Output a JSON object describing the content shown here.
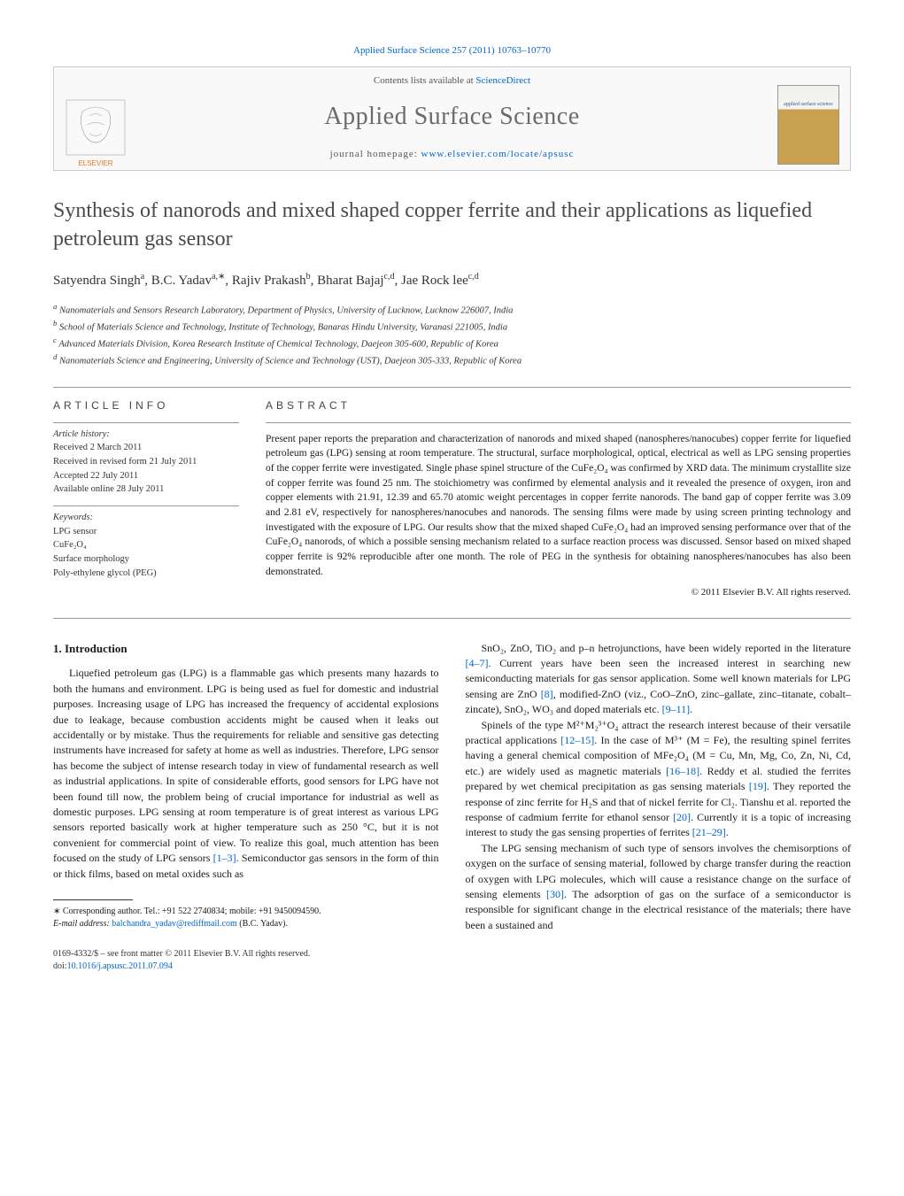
{
  "header": {
    "citation_prefix": "Applied Surface Science",
    "citation": "257 (2011) 10763–10770",
    "contents_line_pre": "Contents lists available at ",
    "contents_link": "ScienceDirect",
    "journal_name": "Applied Surface Science",
    "homepage_label": "journal homepage: ",
    "homepage_url": "www.elsevier.com/locate/apsusc",
    "cover_text": "applied surface science"
  },
  "title": "Synthesis of nanorods and mixed shaped copper ferrite and their applications as liquefied petroleum gas sensor",
  "authors_html": "Satyendra Singh<sup>a</sup>, B.C. Yadav<sup>a,∗</sup>, Rajiv Prakash<sup>b</sup>, Bharat Bajaj<sup>c,d</sup>, Jae Rock lee<sup>c,d</sup>",
  "affiliations": [
    "a Nanomaterials and Sensors Research Laboratory, Department of Physics, University of Lucknow, Lucknow 226007, India",
    "b School of Materials Science and Technology, Institute of Technology, Banaras Hindu University, Varanasi 221005, India",
    "c Advanced Materials Division, Korea Research Institute of Chemical Technology, Daejeon 305-600, Republic of Korea",
    "d Nanomaterials Science and Engineering, University of Science and Technology (UST), Daejeon 305-333, Republic of Korea"
  ],
  "article_info": {
    "heading": "ARTICLE INFO",
    "history_label": "Article history:",
    "history": [
      "Received 2 March 2011",
      "Received in revised form 21 July 2011",
      "Accepted 22 July 2011",
      "Available online 28 July 2011"
    ],
    "keywords_label": "Keywords:",
    "keywords": [
      "LPG sensor",
      "CuFe₂O₄",
      "Surface morphology",
      "Poly-ethylene glycol (PEG)"
    ]
  },
  "abstract": {
    "heading": "ABSTRACT",
    "text": "Present paper reports the preparation and characterization of nanorods and mixed shaped (nanospheres/nanocubes) copper ferrite for liquefied petroleum gas (LPG) sensing at room temperature. The structural, surface morphological, optical, electrical as well as LPG sensing properties of the copper ferrite were investigated. Single phase spinel structure of the CuFe₂O₄ was confirmed by XRD data. The minimum crystallite size of copper ferrite was found 25 nm. The stoichiometry was confirmed by elemental analysis and it revealed the presence of oxygen, iron and copper elements with 21.91, 12.39 and 65.70 atomic weight percentages in copper ferrite nanorods. The band gap of copper ferrite was 3.09 and 2.81 eV, respectively for nanospheres/nanocubes and nanorods. The sensing films were made by using screen printing technology and investigated with the exposure of LPG. Our results show that the mixed shaped CuFe₂O₄ had an improved sensing performance over that of the CuFe₂O₄ nanorods, of which a possible sensing mechanism related to a surface reaction process was discussed. Sensor based on mixed shaped copper ferrite is 92% reproducible after one month. The role of PEG in the synthesis for obtaining nanospheres/nanocubes has also been demonstrated.",
    "copyright": "© 2011 Elsevier B.V. All rights reserved."
  },
  "body": {
    "section_heading": "1. Introduction",
    "left_col": "Liquefied petroleum gas (LPG) is a flammable gas which presents many hazards to both the humans and environment. LPG is being used as fuel for domestic and industrial purposes. Increasing usage of LPG has increased the frequency of accidental explosions due to leakage, because combustion accidents might be caused when it leaks out accidentally or by mistake. Thus the requirements for reliable and sensitive gas detecting instruments have increased for safety at home as well as industries. Therefore, LPG sensor has become the subject of intense research today in view of fundamental research as well as industrial applications. In spite of considerable efforts, good sensors for LPG have not been found till now, the problem being of crucial importance for industrial as well as domestic purposes. LPG sensing at room temperature is of great interest as various LPG sensors reported basically work at higher temperature such as 250 °C, but it is not convenient for commercial point of view. To realize this goal, much attention has been focused on the study of LPG sensors [1–3]. Semiconductor gas sensors in the form of thin or thick films, based on metal oxides such as",
    "right_col_p1": "SnO₂, ZnO, TiO₂ and p–n hetrojunctions, have been widely reported in the literature [4–7]. Current years have been seen the increased interest in searching new semiconducting materials for gas sensor application. Some well known materials for LPG sensing are ZnO [8], modified-ZnO (viz., CoO–ZnO, zinc–gallate, zinc–titanate, cobalt–zincate), SnO₂, WO₃ and doped materials etc. [9–11].",
    "right_col_p2": "Spinels of the type M²⁺M₂³⁺O₄ attract the research interest because of their versatile practical applications [12–15]. In the case of M³⁺ (M = Fe), the resulting spinel ferrites having a general chemical composition of MFe₂O₄ (M = Cu, Mn, Mg, Co, Zn, Ni, Cd, etc.) are widely used as magnetic materials [16–18]. Reddy et al. studied the ferrites prepared by wet chemical precipitation as gas sensing materials [19]. They reported the response of zinc ferrite for H₂S and that of nickel ferrite for Cl₂. Tianshu et al. reported the response of cadmium ferrite for ethanol sensor [20]. Currently it is a topic of increasing interest to study the gas sensing properties of ferrites [21–29].",
    "right_col_p3": "The LPG sensing mechanism of such type of sensors involves the chemisorptions of oxygen on the surface of sensing material, followed by charge transfer during the reaction of oxygen with LPG molecules, which will cause a resistance change on the surface of sensing elements [30]. The adsorption of gas on the surface of a semiconductor is responsible for significant change in the electrical resistance of the materials; there have been a sustained and"
  },
  "footnote": {
    "corr_label": "∗ Corresponding author. Tel.: +91 522 2740834; mobile: +91 9450094590.",
    "email_label": "E-mail address: ",
    "email": "balchandra_yadav@rediffmail.com",
    "email_suffix": " (B.C. Yadav)."
  },
  "footer": {
    "line1": "0169-4332/$ – see front matter © 2011 Elsevier B.V. All rights reserved.",
    "doi_label": "doi:",
    "doi": "10.1016/j.apsusc.2011.07.094"
  },
  "colors": {
    "link": "#0066cc",
    "text": "#1a1a1a",
    "heading_gray": "#4a4a4a",
    "journal_gray": "#6b6b6b",
    "border": "#cccccc"
  }
}
